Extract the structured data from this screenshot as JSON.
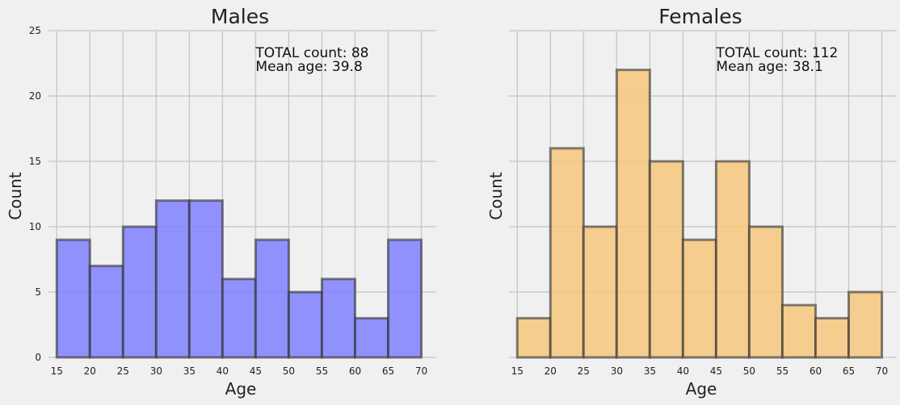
{
  "chart_data": [
    {
      "type": "bar",
      "title": "Males",
      "xlabel": "Age",
      "ylabel": "Count",
      "bin_edges": [
        15,
        20,
        25,
        30,
        35,
        40,
        45,
        50,
        55,
        60,
        65,
        70
      ],
      "values": [
        9,
        7,
        10,
        12,
        12,
        6,
        9,
        5,
        6,
        3,
        9
      ],
      "xticks": [
        15,
        20,
        25,
        30,
        35,
        40,
        45,
        50,
        55,
        60,
        65,
        70
      ],
      "yticks": [
        0,
        5,
        10,
        15,
        20,
        25
      ],
      "xlim": [
        13.75,
        72.25
      ],
      "ylim": [
        0,
        25
      ],
      "show_yticklabels": true,
      "grid": true,
      "color": "#8080ff",
      "edge_color": "#333333",
      "annotation": [
        "TOTAL count: 88",
        "Mean age: 39.8"
      ]
    },
    {
      "type": "bar",
      "title": "Females",
      "xlabel": "Age",
      "ylabel": "Count",
      "bin_edges": [
        15,
        20,
        25,
        30,
        35,
        40,
        45,
        50,
        55,
        60,
        65,
        70
      ],
      "values": [
        3,
        16,
        10,
        22,
        15,
        9,
        15,
        10,
        4,
        3,
        5
      ],
      "xticks": [
        15,
        20,
        25,
        30,
        35,
        40,
        45,
        50,
        55,
        60,
        65,
        70
      ],
      "yticks": [
        0,
        5,
        10,
        15,
        20,
        25
      ],
      "xlim": [
        13.75,
        72.25
      ],
      "ylim": [
        0,
        25
      ],
      "show_yticklabels": false,
      "grid": true,
      "color": "#f5c77e",
      "edge_color": "#333333",
      "annotation": [
        "TOTAL count: 112",
        "Mean age: 38.1"
      ]
    }
  ]
}
